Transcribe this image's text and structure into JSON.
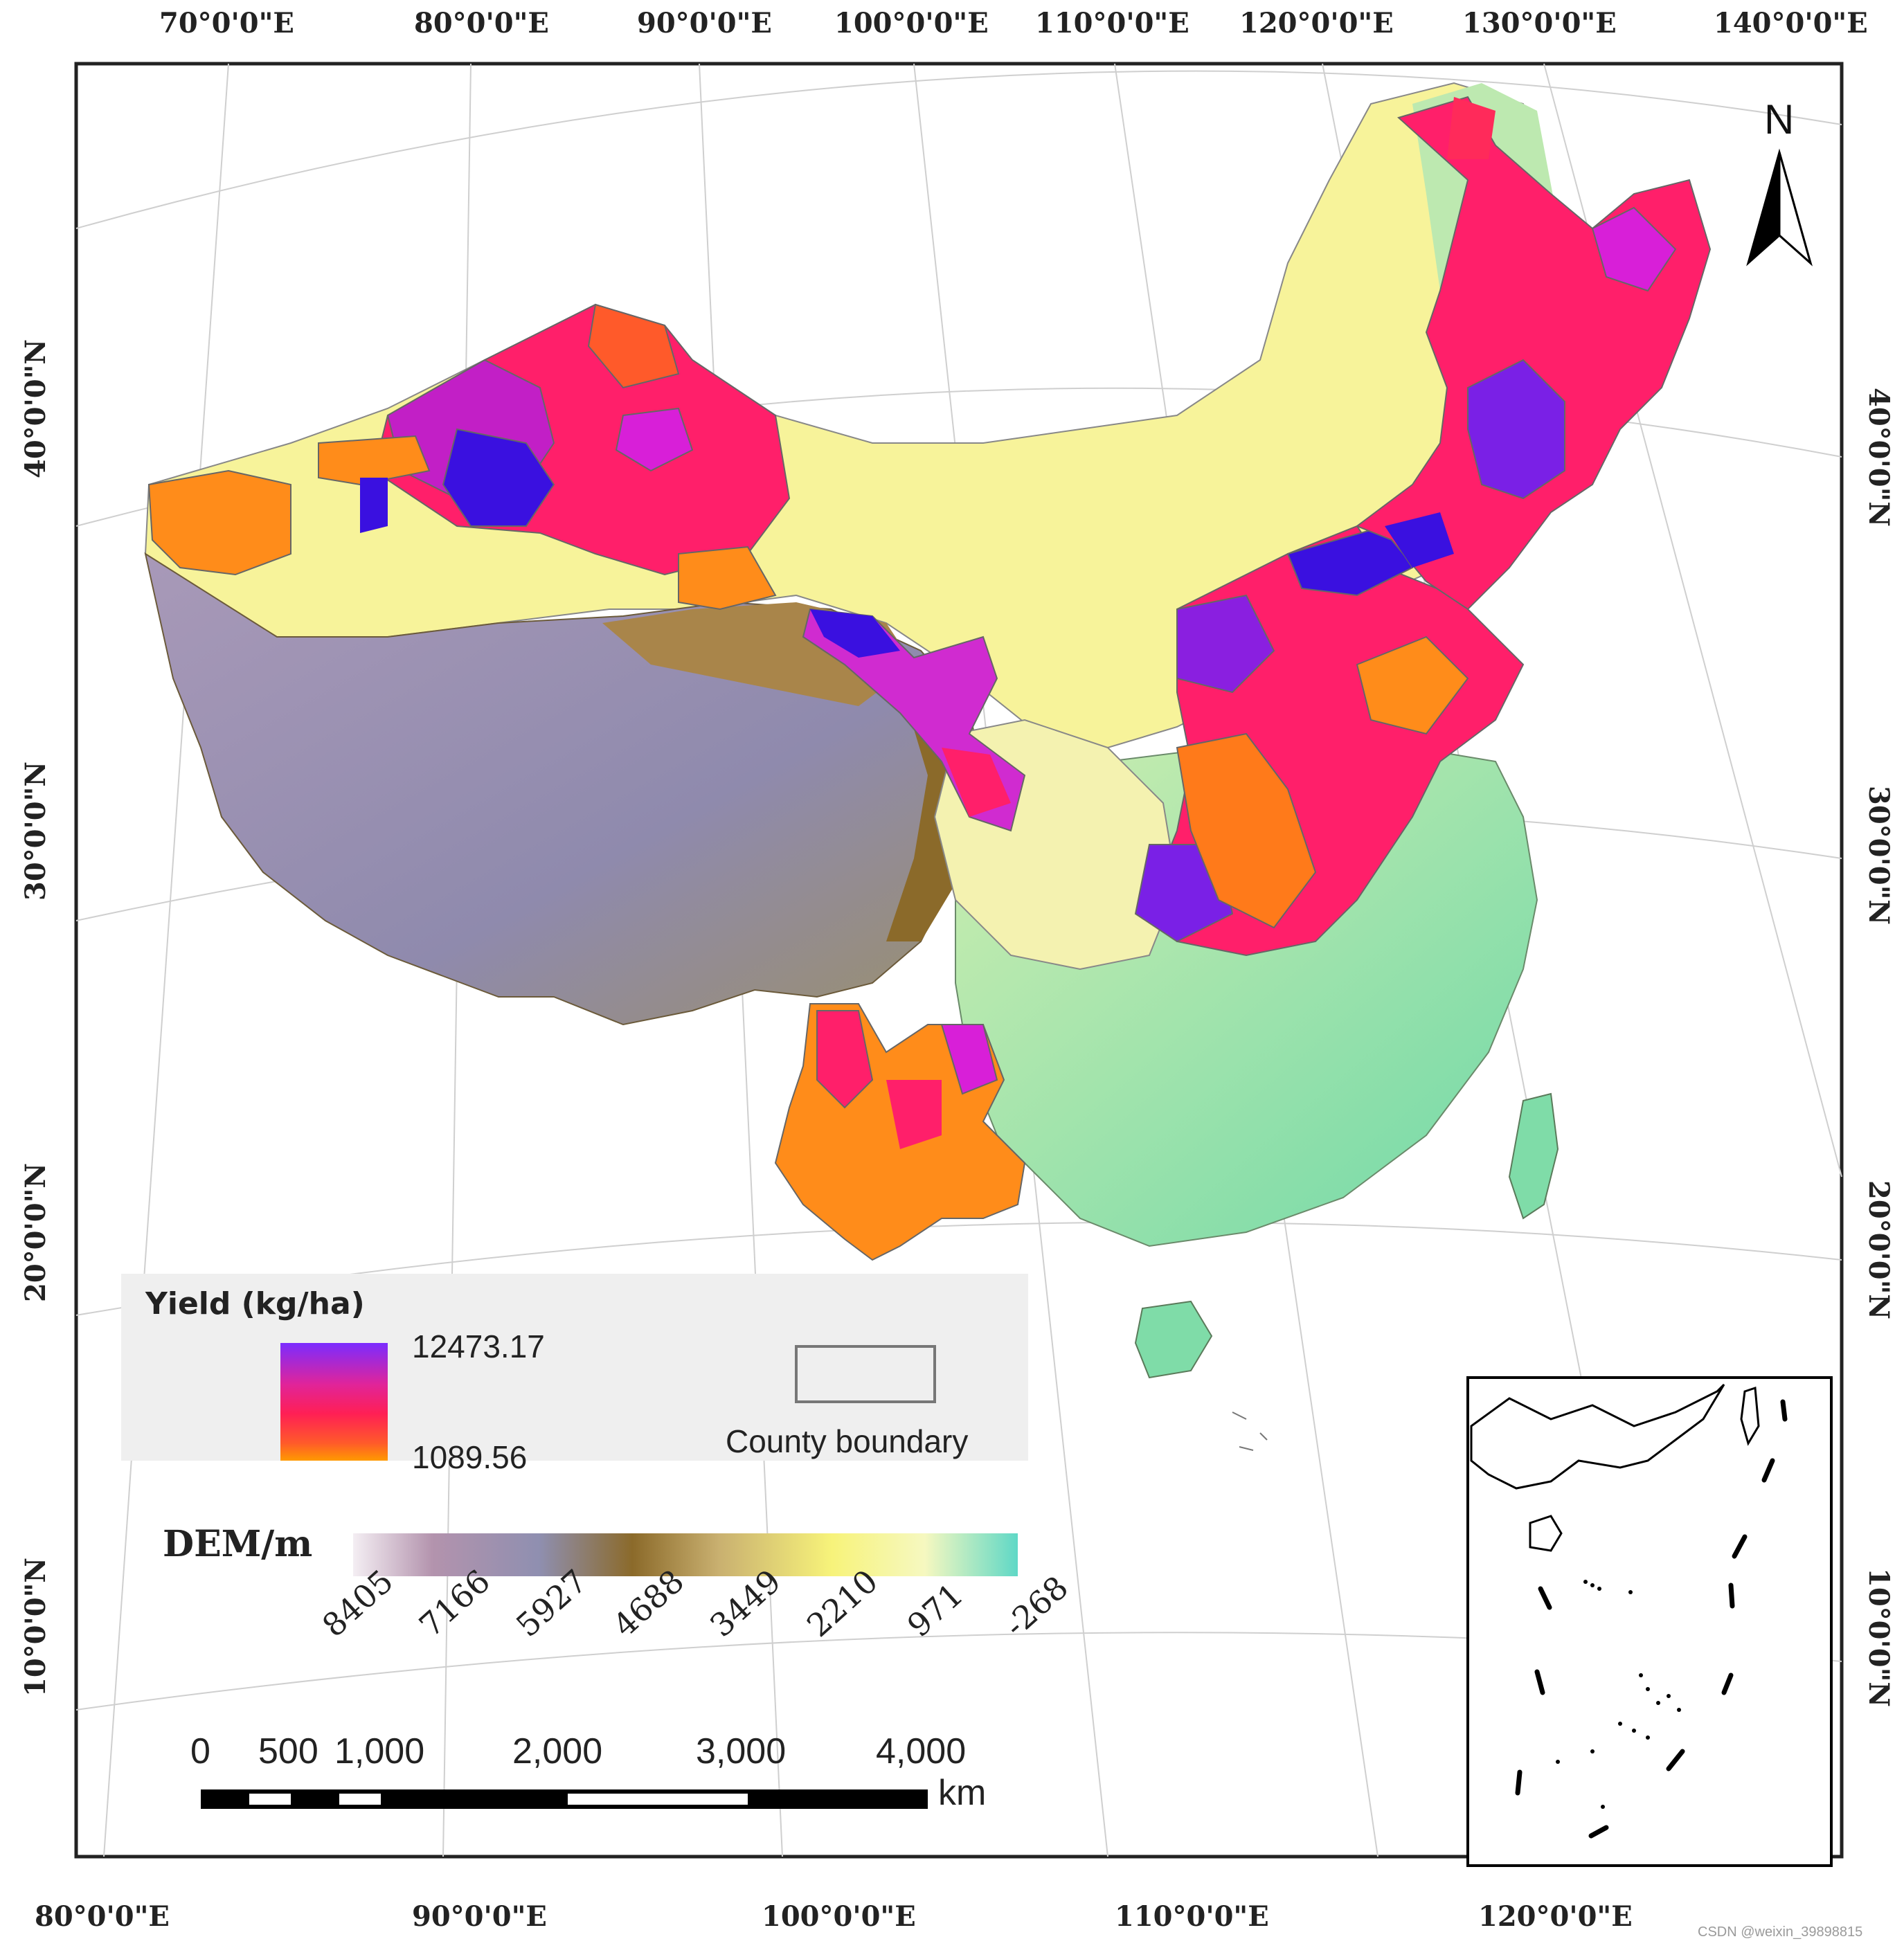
{
  "map": {
    "top_labels": [
      "70°0'0\"E",
      "80°0'0\"E",
      "90°0'0\"E",
      "100°0'0\"E",
      "110°0'0\"E",
      "120°0'0\"E",
      "130°0'0\"E",
      "140°0'0\"E"
    ],
    "bottom_labels": [
      "80°0'0\"E",
      "90°0'0\"E",
      "100°0'0\"E",
      "110°0'0\"E",
      "120°0'0\"E"
    ],
    "left_labels": [
      "40°0'0\"N",
      "30°0'0\"N",
      "20°0'0\"N",
      "10°0'0\"N"
    ],
    "right_labels": [
      "40°0'0\"N",
      "30°0'0\"N",
      "20°0'0\"N",
      "10°0'0\"N"
    ],
    "north_label": "N"
  },
  "legend": {
    "yield_title": "Yield (kg/ha)",
    "yield_max": "12473.17",
    "yield_min": "1089.56",
    "county_label": "County boundary",
    "dem_title": "DEM/m",
    "dem_ticks": [
      "8405",
      "7166",
      "5927",
      "4688",
      "3449",
      "2210",
      "971",
      "-268"
    ]
  },
  "scale": {
    "ticks": [
      "0",
      "500",
      "1,000",
      "2,000",
      "3,000",
      "4,000"
    ],
    "unit": "km"
  },
  "watermark": "CSDN @weixin_39898815",
  "colors": {
    "yield_high": "#8a2be2",
    "yield_mid": "#ff1f6a",
    "yield_low": "#ff8c00",
    "dem_low": "#66d9c4",
    "dem_mid": "#fafa8c",
    "dem_high_brown": "#8b6a2a",
    "dem_peak": "#8a82a8"
  }
}
